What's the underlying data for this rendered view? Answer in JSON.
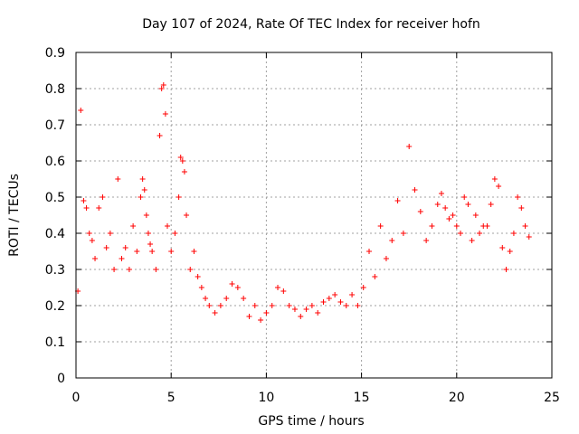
{
  "chart_data": {
    "type": "scatter",
    "title": "Day 107 of 2024, Rate Of TEC Index for receiver hofn",
    "xlabel": "GPS time / hours",
    "ylabel": "ROTI / TECUs",
    "xlim": [
      0,
      25
    ],
    "ylim": [
      0,
      0.9
    ],
    "xticks": [
      "0",
      "5",
      "10",
      "15",
      "20",
      "25"
    ],
    "yticks": [
      "0",
      "0.1",
      "0.2",
      "0.3",
      "0.4",
      "0.5",
      "0.6",
      "0.7",
      "0.8",
      "0.9"
    ],
    "grid": true,
    "marker": "+",
    "color": "#ff0000",
    "series": [
      {
        "x": [
          0.1,
          0.25,
          0.4,
          0.55,
          0.7,
          0.85,
          1.0,
          1.2,
          1.4,
          1.6,
          1.8,
          2.0,
          2.2,
          2.4,
          2.6,
          2.8,
          3.0,
          3.2,
          3.4,
          3.5,
          3.6,
          3.7,
          3.8,
          3.9,
          4.0,
          4.2,
          4.4,
          4.5,
          4.6,
          4.7,
          4.8,
          5.0,
          5.2,
          5.4,
          5.5,
          5.6,
          5.7,
          5.8,
          6.0,
          6.2,
          6.4,
          6.6,
          6.8,
          7.0,
          7.3,
          7.6,
          7.9,
          8.2,
          8.5,
          8.8,
          9.1,
          9.4,
          9.7,
          10.0,
          10.3,
          10.6,
          10.9,
          11.2,
          11.5,
          11.8,
          12.1,
          12.4,
          12.7,
          13.0,
          13.3,
          13.6,
          13.9,
          14.2,
          14.5,
          14.8,
          15.1,
          15.4,
          15.7,
          16.0,
          16.3,
          16.6,
          16.9,
          17.2,
          17.5,
          17.8,
          18.1,
          18.4,
          18.7,
          19.0,
          19.2,
          19.4,
          19.6,
          19.8,
          20.0,
          20.2,
          20.4,
          20.6,
          20.8,
          21.0,
          21.2,
          21.4,
          21.6,
          21.8,
          22.0,
          22.2,
          22.4,
          22.6,
          22.8,
          23.0,
          23.2,
          23.4,
          23.6,
          23.8
        ],
        "y": [
          0.24,
          0.74,
          0.49,
          0.47,
          0.4,
          0.38,
          0.33,
          0.47,
          0.5,
          0.36,
          0.4,
          0.3,
          0.55,
          0.33,
          0.36,
          0.3,
          0.42,
          0.35,
          0.5,
          0.55,
          0.52,
          0.45,
          0.4,
          0.37,
          0.35,
          0.3,
          0.67,
          0.8,
          0.81,
          0.73,
          0.42,
          0.35,
          0.4,
          0.5,
          0.61,
          0.6,
          0.57,
          0.45,
          0.3,
          0.35,
          0.28,
          0.25,
          0.22,
          0.2,
          0.18,
          0.2,
          0.22,
          0.26,
          0.25,
          0.22,
          0.17,
          0.2,
          0.16,
          0.18,
          0.2,
          0.25,
          0.24,
          0.2,
          0.19,
          0.17,
          0.19,
          0.2,
          0.18,
          0.21,
          0.22,
          0.23,
          0.21,
          0.2,
          0.23,
          0.2,
          0.25,
          0.35,
          0.28,
          0.42,
          0.33,
          0.38,
          0.49,
          0.4,
          0.64,
          0.52,
          0.46,
          0.38,
          0.42,
          0.48,
          0.51,
          0.47,
          0.44,
          0.45,
          0.42,
          0.4,
          0.5,
          0.48,
          0.38,
          0.45,
          0.4,
          0.42,
          0.42,
          0.48,
          0.55,
          0.53,
          0.36,
          0.3,
          0.35,
          0.4,
          0.5,
          0.47,
          0.42,
          0.39
        ]
      }
    ]
  }
}
